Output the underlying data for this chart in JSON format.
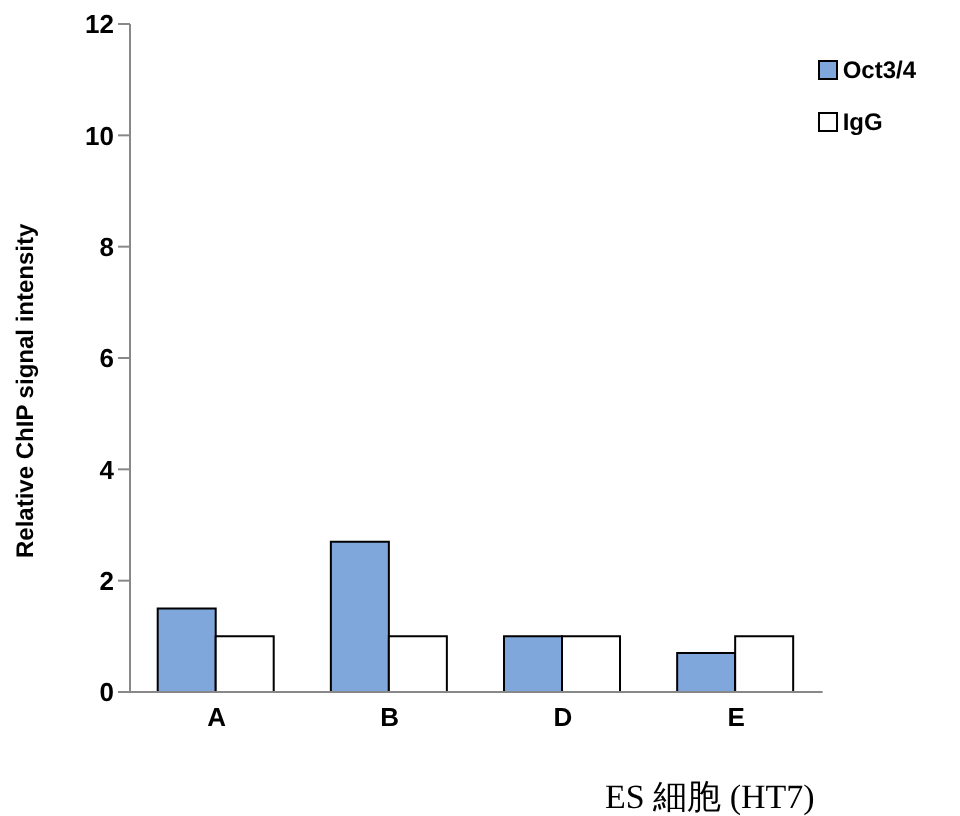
{
  "chart_data": {
    "type": "bar",
    "ylabel": "Relative ChIP signal intensity",
    "xlabel": "ES 細胞 (HT7)",
    "categories": [
      "A",
      "B",
      "D",
      "E"
    ],
    "series": [
      {
        "name": "Oct3/4",
        "color": "#7fa7dc",
        "values": [
          1.5,
          2.7,
          1.0,
          0.7
        ]
      },
      {
        "name": "IgG",
        "color": "#ffffff",
        "values": [
          1.0,
          1.0,
          1.0,
          1.0
        ]
      }
    ],
    "ylim": [
      0,
      12
    ],
    "yticks": [
      0,
      2,
      4,
      6,
      8,
      10,
      12
    ],
    "grid": false,
    "legend": "top right"
  }
}
